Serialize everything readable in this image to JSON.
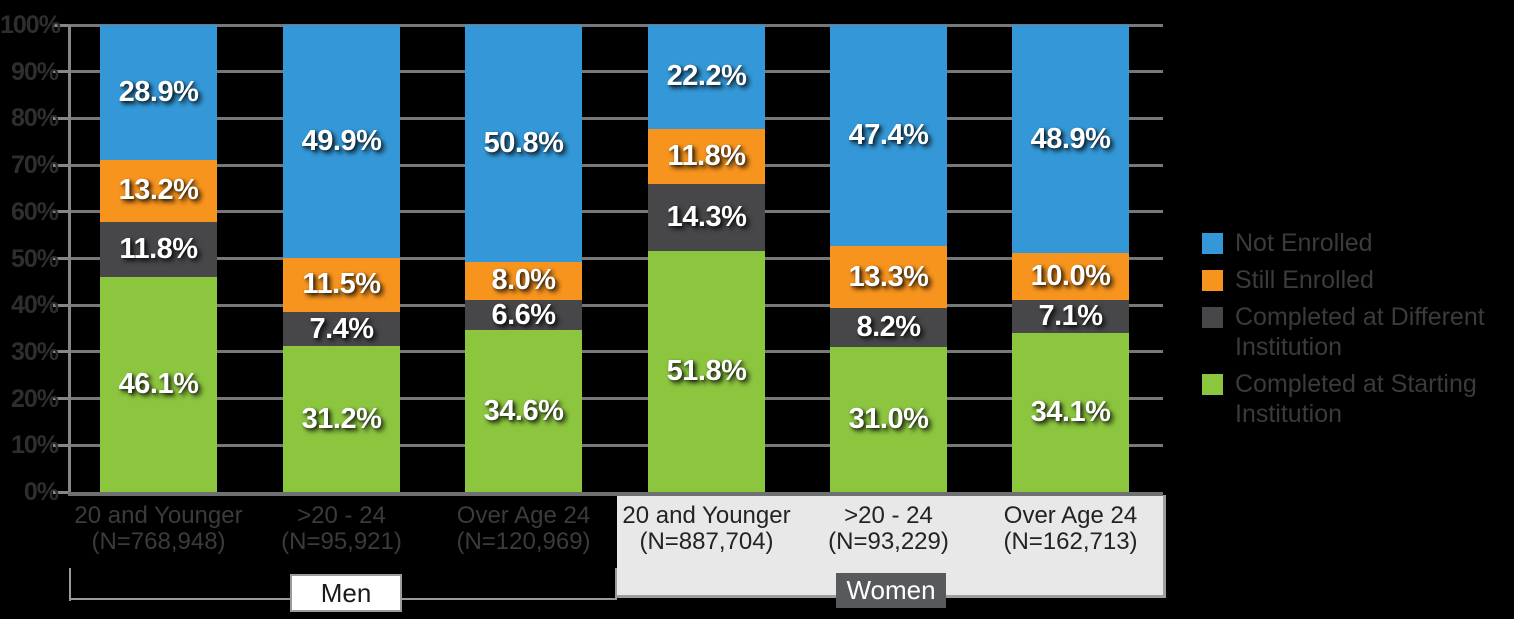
{
  "chart_data": {
    "type": "bar",
    "stacked": true,
    "orientation": "vertical",
    "value_suffix": "%",
    "categories": [
      {
        "group": "Men",
        "label": "20 and Younger",
        "n_label": "(N=768,948)"
      },
      {
        "group": "Men",
        "label": ">20 - 24",
        "n_label": "(N=95,921)"
      },
      {
        "group": "Men",
        "label": "Over Age 24",
        "n_label": "(N=120,969)"
      },
      {
        "group": "Women",
        "label": "20 and Younger",
        "n_label": "(N=887,704)"
      },
      {
        "group": "Women",
        "label": ">20 - 24",
        "n_label": "(N=93,229)"
      },
      {
        "group": "Women",
        "label": "Over Age 24",
        "n_label": "(N=162,713)"
      }
    ],
    "series": [
      {
        "name": "Completed at Starting Institution",
        "color": "#8cc63f",
        "values": [
          46.1,
          31.2,
          34.6,
          51.8,
          31.0,
          34.1
        ],
        "labels": [
          "46.1%",
          "31.2%",
          "34.6%",
          "51.8%",
          "31.0%",
          "34.1%"
        ]
      },
      {
        "name": "Completed at Different Institution",
        "color": "#47474a",
        "values": [
          11.8,
          7.4,
          6.6,
          14.3,
          8.2,
          7.1
        ],
        "labels": [
          "11.8%",
          "7.4%",
          "6.6%",
          "14.3%",
          "8.2%",
          "7.1%"
        ]
      },
      {
        "name": "Still Enrolled",
        "color": "#f7941e",
        "values": [
          13.2,
          11.5,
          8.0,
          11.8,
          13.3,
          10.0
        ],
        "labels": [
          "13.2%",
          "11.5%",
          "8.0%",
          "11.8%",
          "13.3%",
          "10.0%"
        ]
      },
      {
        "name": "Not Enrolled",
        "color": "#3498d8",
        "values": [
          28.9,
          49.9,
          50.8,
          22.2,
          47.4,
          48.9
        ],
        "labels": [
          "28.9%",
          "49.9%",
          "50.8%",
          "22.2%",
          "47.4%",
          "48.9%"
        ]
      }
    ],
    "y_axis": {
      "min": 0,
      "max": 100,
      "grid": true,
      "ticks": [
        "0%",
        "10%",
        "20%",
        "30%",
        "40%",
        "50%",
        "60%",
        "70%",
        "80%",
        "90%",
        "100%"
      ]
    },
    "legend_position": "right"
  },
  "legend": {
    "items": [
      {
        "label": "Not Enrolled",
        "color": "#3498d8"
      },
      {
        "label": "Still Enrolled",
        "color": "#f7941e"
      },
      {
        "label": "Completed at Different Institution",
        "color": "#47474a"
      },
      {
        "label": "Completed at Starting Institution",
        "color": "#8cc63f"
      }
    ]
  },
  "groups": {
    "men": {
      "label": "Men"
    },
    "women": {
      "label": "Women"
    }
  },
  "palette": {
    "background": "#000000",
    "gridline": "#77787a",
    "axis": "#85868a",
    "women_panel": "#e8e8e9",
    "men_box_bg": "#ffffff",
    "women_box_bg": "#58595b",
    "bar_value_text": "#ffffff",
    "tick_label_text": "#2d2e30",
    "legend_text": "#3a3b3d"
  }
}
